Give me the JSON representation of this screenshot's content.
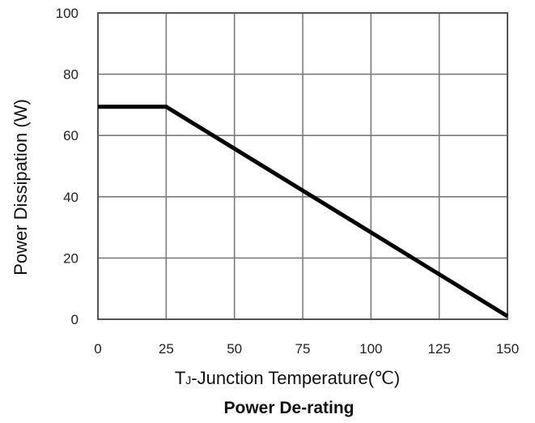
{
  "chart_data": {
    "type": "line",
    "title": "Power De-rating",
    "xlabel_main": "T",
    "xlabel_sub": "J",
    "xlabel_rest": "-Junction Temperature(℃)",
    "ylabel": "Power Dissipation (W)",
    "xlim": [
      0,
      150
    ],
    "ylim": [
      0,
      100
    ],
    "xticks": [
      0,
      25,
      50,
      75,
      100,
      125,
      150
    ],
    "yticks": [
      0,
      20,
      40,
      60,
      80,
      100
    ],
    "grid": true,
    "legend": "none",
    "series": [
      {
        "x": [
          0,
          25,
          150
        ],
        "y": [
          69.4,
          69.4,
          1
        ],
        "color": "#000000"
      }
    ]
  }
}
